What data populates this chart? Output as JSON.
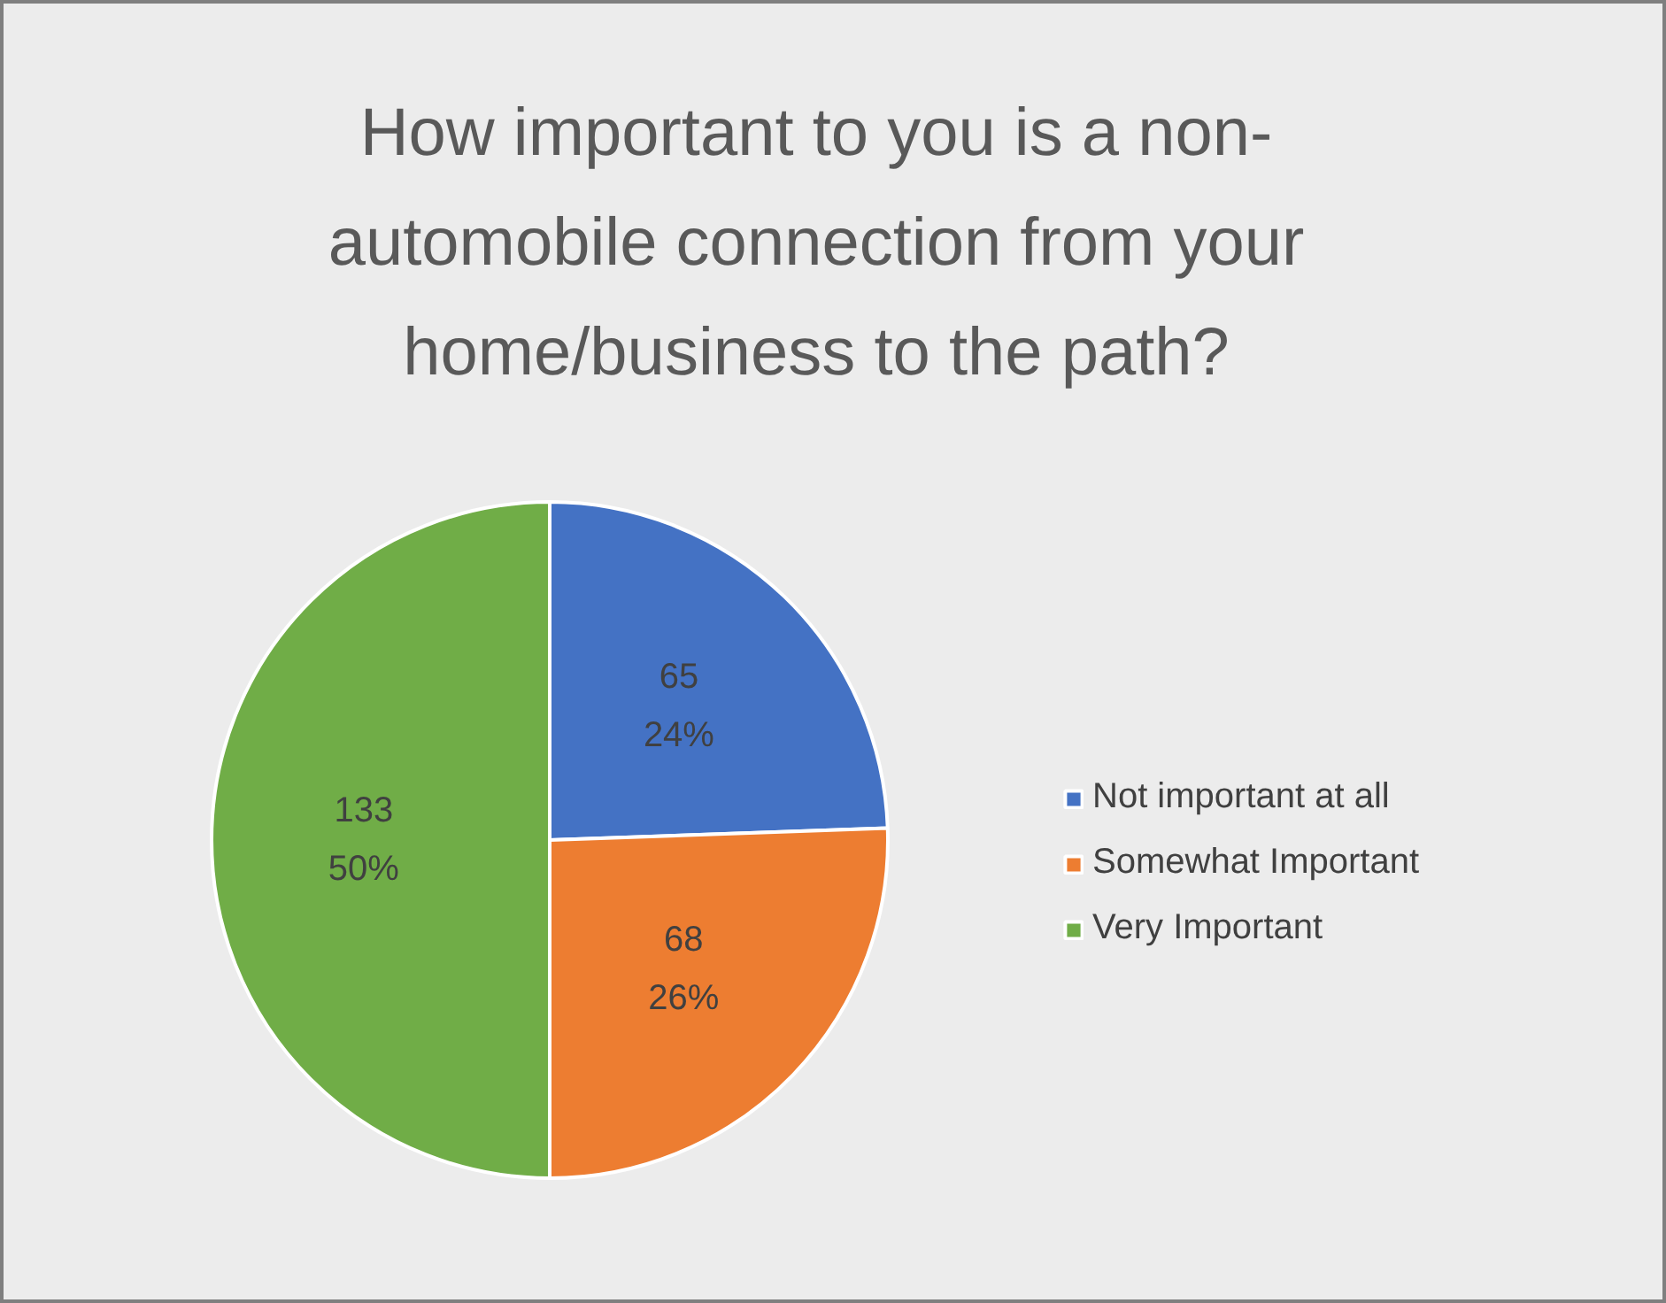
{
  "chart_data": {
    "type": "pie",
    "title": "How important to you is a non-\nautomobile connection from your\nhome/business to the path?",
    "categories": [
      "Not important at all",
      "Somewhat Important",
      "Very Important"
    ],
    "values": [
      65,
      68,
      133
    ],
    "colors": [
      "#4472c4",
      "#ed7d31",
      "#70ad47"
    ],
    "value_labels": [
      "65\n24%",
      "68\n26%",
      "133\n50%"
    ],
    "legend": "right"
  }
}
